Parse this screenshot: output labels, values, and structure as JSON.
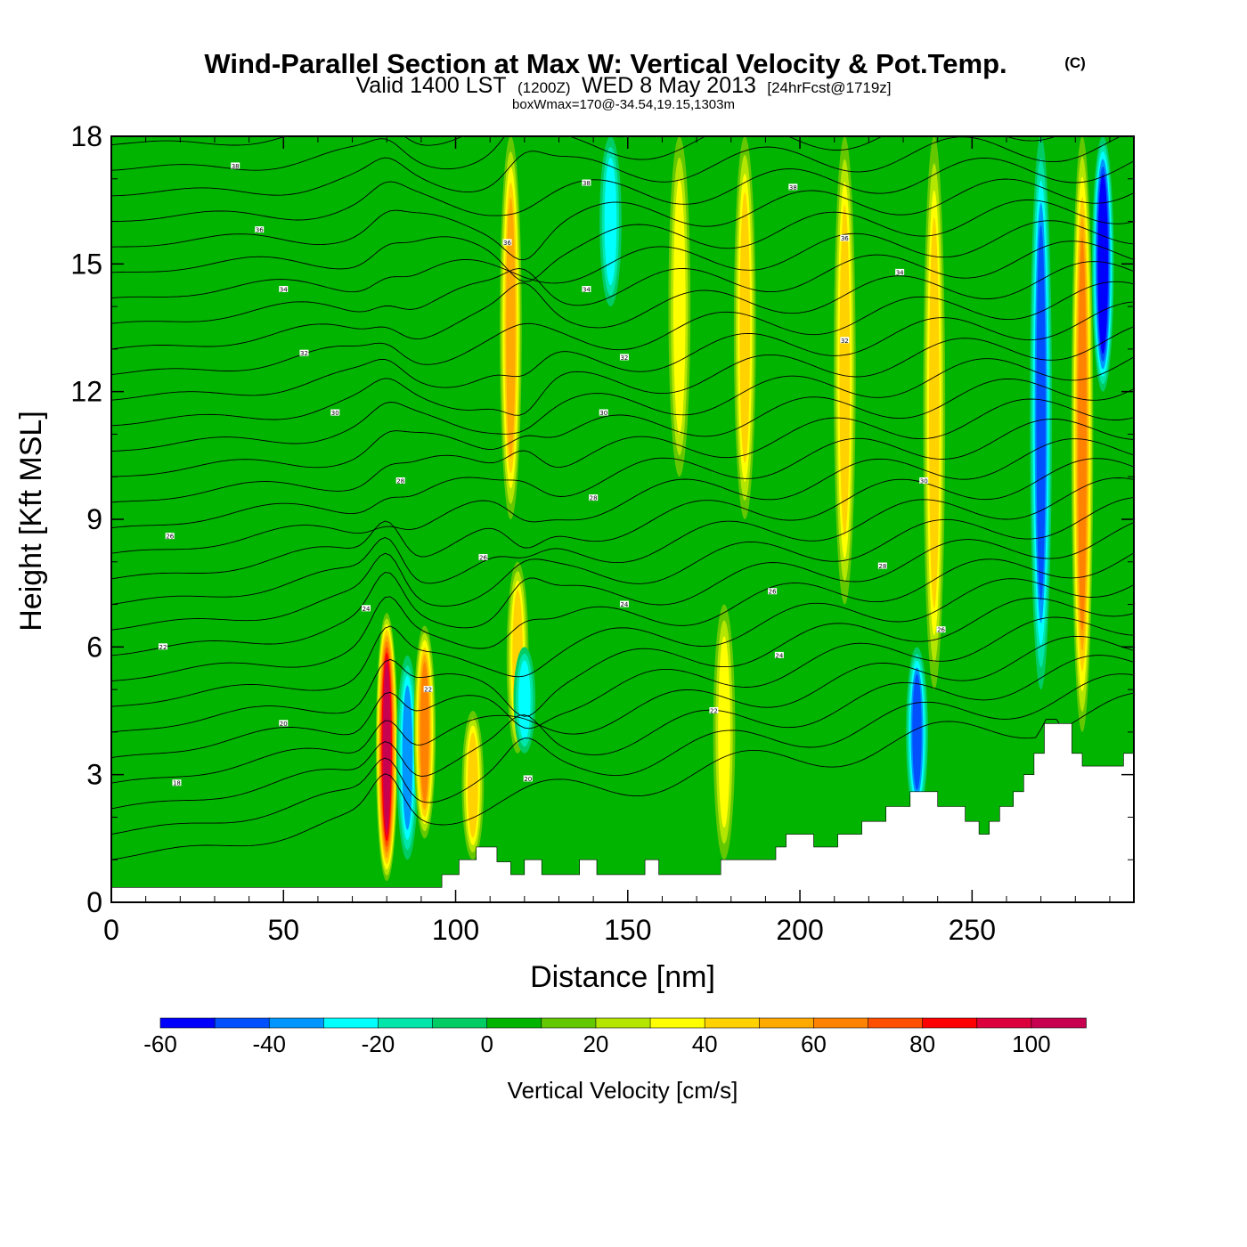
{
  "chart_data": {
    "type": "heatmap",
    "title": "Wind-Parallel Section at Max W: Vertical Velocity & Pot.Temp.",
    "title_mark": "(C)",
    "subtitle_valid": "Valid 1400 LST",
    "subtitle_utc": "(1200Z)",
    "subtitle_date": "WED 8 May 2013",
    "subtitle_fcst": "[24hrFcst@1719z]",
    "box_info": "boxWmax=170@-34.54,19.15,1303m",
    "xlabel": "Distance [nm]",
    "ylabel": "Height [Kft MSL]",
    "xlim": [
      0,
      297
    ],
    "ylim": [
      0,
      18
    ],
    "x_ticks": [
      0,
      50,
      100,
      150,
      200,
      250
    ],
    "y_ticks": [
      0,
      3,
      6,
      9,
      12,
      15,
      18
    ],
    "colorbar": {
      "label": "Vertical Velocity [cm/s]",
      "ticks": [
        -60,
        -40,
        -20,
        0,
        20,
        40,
        60,
        80,
        100
      ],
      "levels": [
        -60,
        -50,
        -40,
        -30,
        -20,
        -10,
        0,
        10,
        20,
        30,
        40,
        50,
        60,
        70,
        80,
        90,
        100,
        110
      ],
      "colors": [
        "#0000ff",
        "#0050ff",
        "#0096ff",
        "#00ffff",
        "#00e6aa",
        "#00cc64",
        "#00b400",
        "#64c800",
        "#b4e600",
        "#ffff00",
        "#ffd200",
        "#ffaa00",
        "#ff8200",
        "#ff5000",
        "#ff0000",
        "#dc003c",
        "#c80050"
      ]
    },
    "vertical_velocity_features": [
      {
        "x": 80,
        "z_bottom": 0.5,
        "z_top": 6.8,
        "peak_w": 100
      },
      {
        "x": 86,
        "z_bottom": 1.0,
        "z_top": 5.8,
        "peak_w": -30
      },
      {
        "x": 91,
        "z_bottom": 1.5,
        "z_top": 6.5,
        "peak_w": 60
      },
      {
        "x": 105,
        "z_bottom": 1.0,
        "z_top": 4.5,
        "peak_w": 40
      },
      {
        "x": 116,
        "z_bottom": 9.0,
        "z_top": 18.0,
        "peak_w": 50
      },
      {
        "x": 118,
        "z_bottom": 3.5,
        "z_top": 8.0,
        "peak_w": 40
      },
      {
        "x": 120,
        "z_bottom": 3.5,
        "z_top": 6.0,
        "peak_w": -25
      },
      {
        "x": 145,
        "z_bottom": 14.0,
        "z_top": 18.0,
        "peak_w": -25
      },
      {
        "x": 165,
        "z_bottom": 10.0,
        "z_top": 18.0,
        "peak_w": 30
      },
      {
        "x": 178,
        "z_bottom": 1.0,
        "z_top": 7.0,
        "peak_w": 30
      },
      {
        "x": 184,
        "z_bottom": 9.0,
        "z_top": 18.0,
        "peak_w": 40
      },
      {
        "x": 213,
        "z_bottom": 7.0,
        "z_top": 18.0,
        "peak_w": 40
      },
      {
        "x": 234,
        "z_bottom": 2.0,
        "z_top": 6.0,
        "peak_w": -45
      },
      {
        "x": 239,
        "z_bottom": 5.0,
        "z_top": 18.0,
        "peak_w": 45
      },
      {
        "x": 270,
        "z_bottom": 5.0,
        "z_top": 18.0,
        "peak_w": -45
      },
      {
        "x": 282,
        "z_bottom": 4.0,
        "z_top": 18.0,
        "peak_w": 60
      },
      {
        "x": 288,
        "z_bottom": 12.0,
        "z_top": 18.0,
        "peak_w": -60
      }
    ],
    "terrain": {
      "x": [
        0,
        94,
        96,
        101,
        106,
        112,
        116,
        120,
        125,
        136,
        141,
        149,
        155,
        159,
        164,
        177,
        180,
        189,
        193,
        196,
        204,
        211,
        218,
        225,
        232,
        240,
        248,
        252,
        255,
        258,
        262,
        265,
        268,
        271,
        275,
        279,
        282,
        285,
        290,
        294,
        297
      ],
      "z_kft": [
        0.35,
        0.35,
        0.65,
        1.0,
        1.3,
        0.95,
        0.65,
        1.0,
        0.65,
        1.0,
        0.65,
        0.65,
        1.0,
        0.65,
        0.65,
        1.0,
        1.0,
        1.0,
        1.3,
        1.6,
        1.3,
        1.6,
        1.9,
        2.25,
        2.6,
        2.25,
        1.9,
        1.6,
        1.9,
        2.25,
        2.6,
        3.0,
        3.5,
        4.2,
        4.2,
        3.5,
        3.2,
        3.2,
        3.2,
        3.5,
        3.5
      ]
    },
    "theta_contour_labels": [
      {
        "x": 36,
        "z": 17.3,
        "text": "38"
      },
      {
        "x": 43,
        "z": 15.8,
        "text": "36"
      },
      {
        "x": 50,
        "z": 14.4,
        "text": "34"
      },
      {
        "x": 56,
        "z": 12.9,
        "text": "32"
      },
      {
        "x": 65,
        "z": 11.5,
        "text": "30"
      },
      {
        "x": 84,
        "z": 9.9,
        "text": "28"
      },
      {
        "x": 17,
        "z": 8.6,
        "text": "26"
      },
      {
        "x": 74,
        "z": 6.9,
        "text": "24"
      },
      {
        "x": 15,
        "z": 6.0,
        "text": "22"
      },
      {
        "x": 50,
        "z": 4.2,
        "text": "20"
      },
      {
        "x": 19,
        "z": 2.8,
        "text": "18"
      },
      {
        "x": 115,
        "z": 15.5,
        "text": "36"
      },
      {
        "x": 138,
        "z": 16.9,
        "text": "38"
      },
      {
        "x": 138,
        "z": 14.4,
        "text": "34"
      },
      {
        "x": 149,
        "z": 12.8,
        "text": "32"
      },
      {
        "x": 143,
        "z": 11.5,
        "text": "30"
      },
      {
        "x": 140,
        "z": 9.5,
        "text": "28"
      },
      {
        "x": 108,
        "z": 8.1,
        "text": "26"
      },
      {
        "x": 149,
        "z": 7.0,
        "text": "24"
      },
      {
        "x": 92,
        "z": 5.0,
        "text": "22"
      },
      {
        "x": 121,
        "z": 2.9,
        "text": "20"
      },
      {
        "x": 198,
        "z": 16.8,
        "text": "38"
      },
      {
        "x": 213,
        "z": 15.6,
        "text": "36"
      },
      {
        "x": 229,
        "z": 14.8,
        "text": "34"
      },
      {
        "x": 213,
        "z": 13.2,
        "text": "32"
      },
      {
        "x": 236,
        "z": 9.9,
        "text": "30"
      },
      {
        "x": 224,
        "z": 7.9,
        "text": "28"
      },
      {
        "x": 192,
        "z": 7.3,
        "text": "26"
      },
      {
        "x": 194,
        "z": 5.8,
        "text": "24"
      },
      {
        "x": 175,
        "z": 4.5,
        "text": "22"
      },
      {
        "x": 241,
        "z": 6.4,
        "text": "26"
      }
    ]
  }
}
